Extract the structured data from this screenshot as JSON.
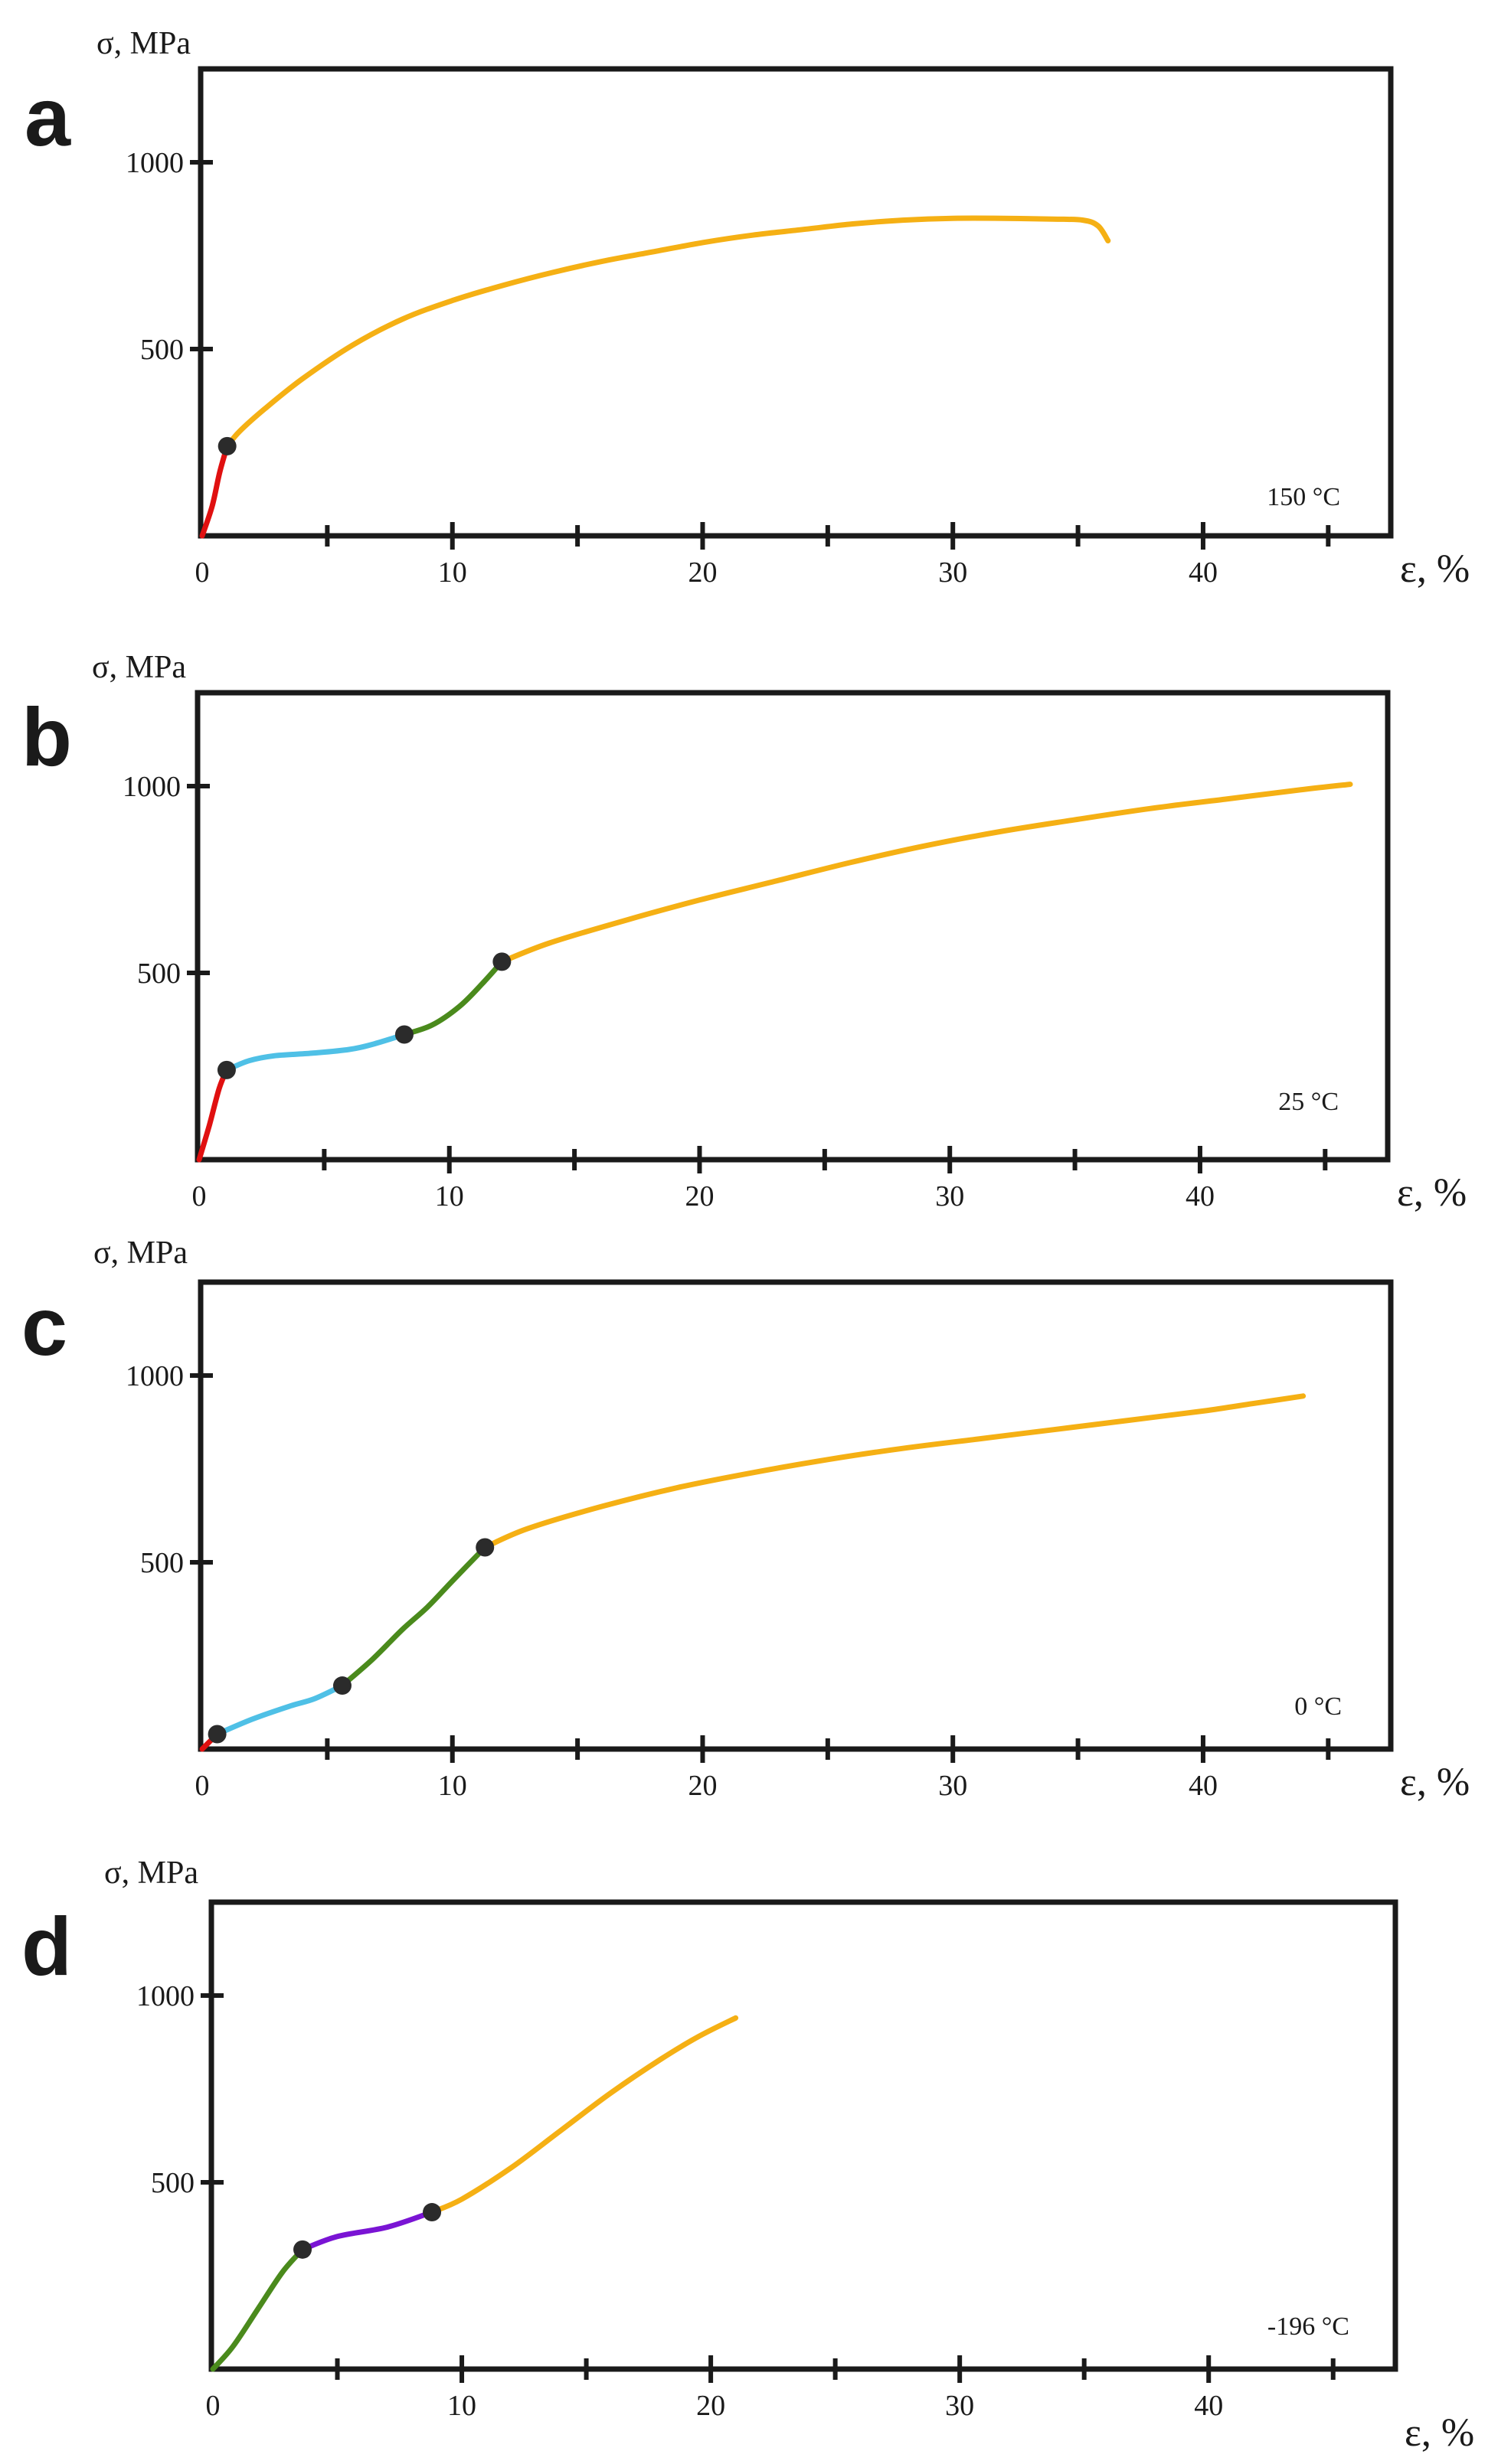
{
  "colors": {
    "elastic": "#e01010",
    "plateau": "#4fc0e6",
    "transition": "#4a8a1c",
    "hardening": "#f5b014",
    "martensite": "#7a14d4",
    "frame": "#1a1a1a",
    "point": "#2b2b2b"
  },
  "chart_data": [
    {
      "panel": "a",
      "type": "line",
      "ylabel": "σ, MPa",
      "xlabel": "ε, %",
      "yticks": [
        1000,
        500
      ],
      "xticks": [
        0,
        10,
        20,
        30,
        40
      ],
      "xlim": [
        0,
        47.5
      ],
      "ylim": [
        0,
        1250
      ],
      "annotation": "150 °C",
      "series": [
        {
          "name": "elastic",
          "color": "#e01010",
          "points": [
            [
              0,
              0
            ],
            [
              0.4,
              80
            ],
            [
              0.7,
              170
            ],
            [
              1.0,
              240
            ]
          ]
        },
        {
          "name": "hardening",
          "color": "#f5b014",
          "points": [
            [
              1.0,
              240
            ],
            [
              1.5,
              280
            ],
            [
              2.5,
              340
            ],
            [
              4,
              420
            ],
            [
              6,
              510
            ],
            [
              8,
              580
            ],
            [
              10,
              630
            ],
            [
              12,
              670
            ],
            [
              14,
              705
            ],
            [
              16,
              735
            ],
            [
              18,
              760
            ],
            [
              20,
              785
            ],
            [
              22,
              805
            ],
            [
              24,
              820
            ],
            [
              26,
              835
            ],
            [
              28,
              845
            ],
            [
              30,
              850
            ],
            [
              32,
              850
            ],
            [
              34,
              848
            ],
            [
              35.2,
              845
            ],
            [
              35.8,
              830
            ],
            [
              36.2,
              790
            ]
          ]
        }
      ],
      "points": [
        [
          1.0,
          240
        ]
      ]
    },
    {
      "panel": "b",
      "type": "line",
      "ylabel": "σ, MPa",
      "xlabel": "ε, %",
      "yticks": [
        1000,
        500
      ],
      "xticks": [
        0,
        10,
        20,
        30,
        40
      ],
      "xlim": [
        0,
        47.5
      ],
      "ylim": [
        0,
        1250
      ],
      "annotation": "25 °C",
      "series": [
        {
          "name": "elastic",
          "color": "#e01010",
          "points": [
            [
              0,
              0
            ],
            [
              0.4,
              90
            ],
            [
              0.8,
              190
            ],
            [
              1.1,
              240
            ]
          ]
        },
        {
          "name": "plateau",
          "color": "#4fc0e6",
          "points": [
            [
              1.1,
              240
            ],
            [
              2,
              265
            ],
            [
              3,
              278
            ],
            [
              4.5,
              285
            ],
            [
              6,
              295
            ],
            [
              7,
              310
            ],
            [
              8.2,
              335
            ]
          ]
        },
        {
          "name": "transition",
          "color": "#4a8a1c",
          "points": [
            [
              8.2,
              335
            ],
            [
              9.3,
              360
            ],
            [
              10.4,
              410
            ],
            [
              11.3,
              470
            ],
            [
              12.1,
              530
            ]
          ]
        },
        {
          "name": "hardening",
          "color": "#f5b014",
          "points": [
            [
              12.1,
              530
            ],
            [
              14,
              580
            ],
            [
              17,
              640
            ],
            [
              20,
              695
            ],
            [
              23,
              745
            ],
            [
              26,
              795
            ],
            [
              29,
              840
            ],
            [
              32,
              878
            ],
            [
              35,
              910
            ],
            [
              38,
              940
            ],
            [
              41,
              965
            ],
            [
              44,
              990
            ],
            [
              46,
              1005
            ]
          ]
        }
      ],
      "points": [
        [
          1.1,
          240
        ],
        [
          8.2,
          335
        ],
        [
          12.1,
          530
        ]
      ]
    },
    {
      "panel": "c",
      "type": "line",
      "ylabel": "σ, MPa",
      "xlabel": "ε, %",
      "yticks": [
        1000,
        500
      ],
      "xticks": [
        0,
        10,
        20,
        30,
        40
      ],
      "xlim": [
        0,
        47.5
      ],
      "ylim": [
        0,
        1250
      ],
      "annotation": "0 °C",
      "series": [
        {
          "name": "elastic",
          "color": "#e01010",
          "points": [
            [
              0,
              0
            ],
            [
              0.3,
              20
            ],
            [
              0.6,
              40
            ]
          ]
        },
        {
          "name": "plateau",
          "color": "#4fc0e6",
          "points": [
            [
              0.6,
              40
            ],
            [
              2,
              80
            ],
            [
              3.5,
              115
            ],
            [
              4.5,
              135
            ],
            [
              5.6,
              170
            ]
          ]
        },
        {
          "name": "transition",
          "color": "#4a8a1c",
          "points": [
            [
              5.6,
              170
            ],
            [
              6.8,
              240
            ],
            [
              8,
              320
            ],
            [
              9,
              380
            ],
            [
              10,
              450
            ],
            [
              11.3,
              540
            ]
          ]
        },
        {
          "name": "hardening",
          "color": "#f5b014",
          "points": [
            [
              11.3,
              540
            ],
            [
              13,
              590
            ],
            [
              16,
              650
            ],
            [
              19,
              700
            ],
            [
              22,
              740
            ],
            [
              25,
              775
            ],
            [
              28,
              805
            ],
            [
              31,
              830
            ],
            [
              34,
              855
            ],
            [
              37,
              880
            ],
            [
              40,
              905
            ],
            [
              42,
              925
            ],
            [
              44,
              945
            ]
          ]
        }
      ],
      "points": [
        [
          0.6,
          40
        ],
        [
          5.6,
          170
        ],
        [
          11.3,
          540
        ]
      ]
    },
    {
      "panel": "d",
      "type": "line",
      "ylabel": "σ, MPa",
      "xlabel": "ε, %",
      "yticks": [
        1000,
        500
      ],
      "xticks": [
        0,
        10,
        20,
        30,
        40
      ],
      "xlim": [
        0,
        47.5
      ],
      "ylim": [
        0,
        1250
      ],
      "annotation": "-196 °C",
      "series": [
        {
          "name": "transition",
          "color": "#4a8a1c",
          "points": [
            [
              0,
              0
            ],
            [
              0.8,
              60
            ],
            [
              1.8,
              160
            ],
            [
              2.8,
              260
            ],
            [
              3.6,
              320
            ]
          ]
        },
        {
          "name": "martensite",
          "color": "#7a14d4",
          "points": [
            [
              3.6,
              320
            ],
            [
              5,
              355
            ],
            [
              7,
              380
            ],
            [
              8.8,
              420
            ]
          ]
        },
        {
          "name": "hardening",
          "color": "#f5b014",
          "points": [
            [
              8.8,
              420
            ],
            [
              10,
              455
            ],
            [
              12,
              540
            ],
            [
              14,
              640
            ],
            [
              16,
              740
            ],
            [
              18,
              830
            ],
            [
              19.5,
              890
            ],
            [
              21,
              940
            ]
          ]
        }
      ],
      "points": [
        [
          3.6,
          320
        ],
        [
          8.8,
          420
        ]
      ]
    }
  ]
}
